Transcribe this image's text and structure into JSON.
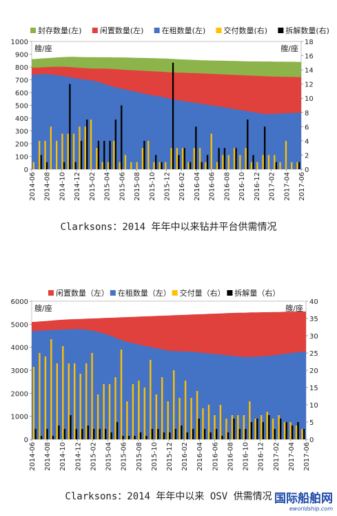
{
  "chart_data": [
    {
      "type": "area",
      "title": "",
      "legend": [
        "封存数量(左)",
        "闲置数量(左)",
        "在租数量(左)",
        "交付数量(右)",
        "拆解数量(右)"
      ],
      "legend_position": "top",
      "left_unit": "艘/座",
      "right_unit": "艘/座",
      "ylim_left": [
        0,
        1000
      ],
      "ylim_right": [
        0,
        18
      ],
      "yticks_left": [
        "0",
        "100",
        "200",
        "300",
        "400",
        "500",
        "600",
        "700",
        "800",
        "900",
        "1000"
      ],
      "yticks_right": [
        "0",
        "2",
        "4",
        "6",
        "8",
        "10",
        "12",
        "14",
        "16",
        "18"
      ],
      "x_tick_labels": [
        "2014-06",
        "2014-08",
        "2014-10",
        "2014-12",
        "2015-02",
        "2015-04",
        "2015-06",
        "2015-08",
        "2015-10",
        "2015-12",
        "2016-02",
        "2016-04",
        "2016-06",
        "2016-08",
        "2016-10",
        "2016-12",
        "2017-02",
        "2017-04",
        "2017-06"
      ],
      "areas": [
        {
          "name": "在租数量(左)",
          "color": "#4472c4",
          "values": [
            740,
            745,
            745,
            740,
            735,
            728,
            720,
            712,
            706,
            700,
            695,
            685,
            670,
            655,
            642,
            632,
            622,
            612,
            602,
            592,
            582,
            575,
            568,
            558,
            548,
            540,
            533,
            526,
            520,
            513,
            506,
            499,
            492,
            485,
            478,
            470,
            462,
            455,
            448,
            440,
            434,
            432,
            434,
            436,
            438,
            440,
            442
          ]
        },
        {
          "name": "闲置数量(左)",
          "color": "#e0413c",
          "values": [
            795,
            797,
            799,
            801,
            802,
            802,
            800,
            797,
            793,
            790,
            788,
            788,
            787,
            786,
            783,
            780,
            777,
            775,
            773,
            770,
            768,
            765,
            763,
            760,
            758,
            756,
            755,
            753,
            752,
            750,
            748,
            746,
            744,
            742,
            740,
            738,
            736,
            734,
            732,
            730,
            728,
            726,
            725,
            724,
            723,
            722,
            721
          ]
        },
        {
          "name": "封存数量(左)",
          "color": "#8db44a",
          "values": [
            862,
            866,
            869,
            872,
            875,
            878,
            880,
            880,
            878,
            877,
            877,
            876,
            876,
            876,
            875,
            875,
            874,
            873,
            872,
            871,
            870,
            869,
            867,
            866,
            863,
            861,
            859,
            857,
            855,
            853,
            852,
            851,
            850,
            849,
            848,
            847,
            846,
            845,
            844,
            844,
            843,
            843,
            842,
            842,
            841,
            841,
            840
          ]
        }
      ],
      "bars": [
        {
          "name": "交付数量(右)",
          "color": "#ffc000",
          "values": [
            1,
            4,
            4,
            6,
            4,
            5,
            5,
            5,
            6,
            6,
            7,
            3,
            1,
            1,
            4,
            1,
            2,
            1,
            1,
            3,
            4,
            1,
            1,
            1,
            3,
            3,
            3,
            1,
            3,
            3,
            1,
            5,
            1,
            2,
            2,
            3,
            2,
            3,
            1,
            1,
            2,
            2,
            2,
            1,
            4,
            1,
            1
          ]
        },
        {
          "name": "拆解数量(右)",
          "color": "#000000",
          "values": [
            0,
            2,
            1,
            0,
            0,
            1,
            12,
            1,
            4,
            7,
            0,
            4,
            4,
            4,
            7,
            9,
            0,
            0,
            0,
            4,
            0,
            2,
            1,
            0,
            15,
            2,
            3,
            1,
            6,
            1,
            2,
            0,
            3,
            3,
            0,
            3,
            0,
            7,
            2,
            0,
            6,
            0,
            1,
            0,
            0,
            0,
            1
          ]
        }
      ]
    },
    {
      "type": "area",
      "title": "",
      "legend": [
        "闲置数量（左）",
        "在租数量（左）",
        "交付量（右）",
        "拆解量（右）"
      ],
      "legend_position": "top",
      "left_unit": "艘/座",
      "right_unit": "艘/座",
      "ylim_left": [
        0,
        6000
      ],
      "ylim_right": [
        0,
        40
      ],
      "yticks_left": [
        "0",
        "1000",
        "2000",
        "3000",
        "4000",
        "5000",
        "6000"
      ],
      "yticks_right": [
        "0",
        "5",
        "10",
        "15",
        "20",
        "25",
        "30",
        "35",
        "40"
      ],
      "x_tick_labels": [
        "2014-06",
        "2014-08",
        "2014-10",
        "2014-12",
        "2015-02",
        "2015-04",
        "2015-06",
        "2015-08",
        "2015-10",
        "2015-12",
        "2016-02",
        "2016-04",
        "2016-06",
        "2016-08",
        "2016-10",
        "2016-12",
        "2017-02",
        "2017-04",
        "2017-06"
      ],
      "areas": [
        {
          "name": "在租数量（左）",
          "color": "#4472c4",
          "values": [
            4700,
            4720,
            4740,
            4750,
            4760,
            4770,
            4780,
            4790,
            4780,
            4760,
            4720,
            4660,
            4580,
            4500,
            4400,
            4300,
            4230,
            4170,
            4110,
            4060,
            4000,
            3950,
            3900,
            3850,
            3830,
            3820,
            3820,
            3800,
            3780,
            3750,
            3730,
            3700,
            3680,
            3650,
            3620,
            3600,
            3580,
            3580,
            3590,
            3600,
            3620,
            3650,
            3680,
            3720,
            3750,
            3780,
            3800
          ]
        },
        {
          "name": "闲置数量（左）",
          "color": "#e0413c",
          "values": [
            5100,
            5120,
            5140,
            5160,
            5180,
            5200,
            5210,
            5220,
            5230,
            5240,
            5250,
            5260,
            5270,
            5280,
            5290,
            5300,
            5310,
            5320,
            5330,
            5340,
            5350,
            5360,
            5370,
            5380,
            5390,
            5400,
            5410,
            5420,
            5430,
            5440,
            5450,
            5460,
            5470,
            5480,
            5490,
            5500,
            5500,
            5510,
            5510,
            5520,
            5520,
            5530,
            5530,
            5540,
            5540,
            5550,
            5550
          ]
        }
      ],
      "bars": [
        {
          "name": "交付量（右）",
          "color": "#ffc000",
          "values": [
            21,
            25,
            24,
            29,
            22,
            27,
            22,
            22,
            19,
            22,
            25,
            13,
            16,
            16,
            18,
            26,
            11,
            16,
            17,
            15,
            23,
            13,
            18,
            11,
            20,
            12,
            17,
            12,
            14,
            9,
            10,
            7,
            10,
            6,
            7,
            7,
            7,
            11,
            6,
            7,
            8,
            6,
            7,
            5,
            5,
            4,
            3
          ]
        },
        {
          "name": "拆解量（右）",
          "color": "#000000",
          "values": [
            3,
            1,
            3,
            1,
            4,
            3,
            7,
            3,
            3,
            4,
            3,
            3,
            3,
            2,
            5,
            1,
            1,
            1,
            2,
            1,
            3,
            3,
            2,
            2,
            3,
            4,
            2,
            3,
            6,
            3,
            2,
            3,
            1,
            2,
            6,
            3,
            3,
            5,
            6,
            5,
            7,
            3,
            6,
            5,
            4,
            5,
            3
          ]
        }
      ]
    }
  ],
  "captions": {
    "chart1": "Clarksons：2014 年年中以来钻井平台供需情况",
    "chart2": "Clarksons：2014 年年中以来 OSV 供需情况"
  },
  "watermark": {
    "cn": "国际船舶网",
    "en": "eworldship.com"
  }
}
